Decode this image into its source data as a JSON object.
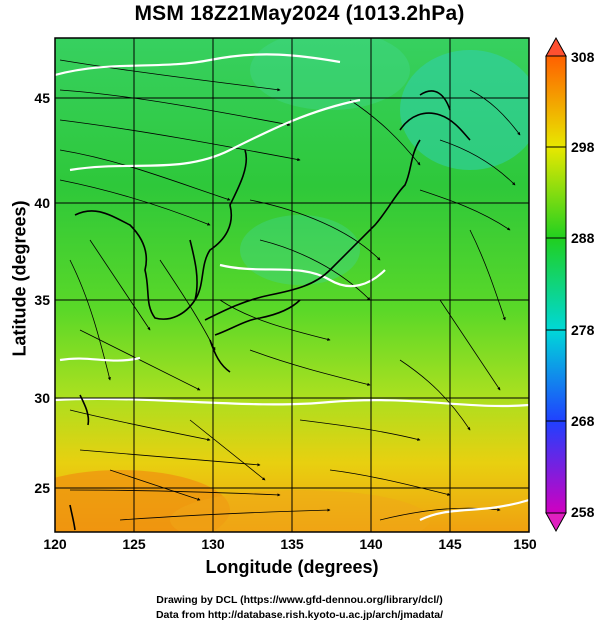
{
  "title": "MSM 18Z21May2024 (1013.2hPa)",
  "xlabel": "Longitude (degrees)",
  "ylabel": "Latitude  (degrees)",
  "credits": [
    "Drawing by DCL (https://www.gfd-dennou.org/library/dcl/)",
    "Data from http://database.rish.kyoto-u.ac.jp/arch/jmadata/"
  ],
  "map": {
    "lon_range": [
      120,
      150
    ],
    "lat_range": [
      22.4,
      47.6
    ],
    "lon_ticks": [
      "120",
      "125",
      "130",
      "135",
      "140",
      "145",
      "150"
    ],
    "lat_ticks": [
      "25",
      "30",
      "35",
      "40",
      "45"
    ],
    "grid": true,
    "field": "surface temperature with streamlines"
  },
  "colorbar": {
    "range": [
      258,
      308
    ],
    "tick_labels": [
      "308",
      "298",
      "288",
      "278",
      "268",
      "258"
    ],
    "colors": [
      "#d000c0",
      "#2040ff",
      "#00d8d8",
      "#20d020",
      "#e8e800",
      "#ff8000",
      "#ff2000"
    ]
  }
}
